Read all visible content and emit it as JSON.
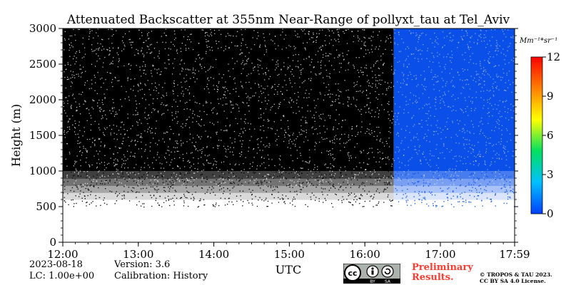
{
  "chart_data": {
    "type": "heatmap",
    "title": "Attenuated Backscatter at 355nm Near-Range of pollyxt_tau at Tel_Aviv",
    "xlabel": "UTC",
    "ylabel": "Height (m)",
    "x_ticks": [
      "12:00",
      "13:00",
      "14:00",
      "15:00",
      "16:00",
      "17:00",
      "17:59"
    ],
    "x_range": [
      "12:00",
      "17:59"
    ],
    "y_ticks": [
      0,
      500,
      1000,
      1500,
      2000,
      2500,
      3000
    ],
    "ylim": [
      0,
      3000
    ],
    "colorbar": {
      "unit": "Mm⁻¹*sr⁻¹",
      "ticks": [
        0,
        3,
        6,
        9,
        12
      ],
      "range": [
        0,
        12
      ],
      "colormap": [
        "#0040ff",
        "#00c0ff",
        "#00e060",
        "#ffff00",
        "#ff8000",
        "#ff0000"
      ]
    },
    "regions": [
      {
        "from": "12:00",
        "to": "16:23",
        "fill": "black with white noise speckle",
        "signal_top_m": 3000,
        "noise_below_m": 1000
      },
      {
        "from": "16:23",
        "to": "17:59",
        "fill": "blue (near 0)",
        "signal_top_m": 3000,
        "noise_below_m": 1000
      }
    ],
    "grid": false,
    "legend": "colorbar-right"
  },
  "info": {
    "date": "2023-08-18",
    "lc": "LC: 1.00e+00",
    "version": "Version: 3.6",
    "calibration": "Calibration: History",
    "preliminary_line1": "Preliminary",
    "preliminary_line2": "Results.",
    "copyright_line1": "© TROPOS & TAU 2023.",
    "copyright_line2": "CC BY SA 4.0 License.",
    "cc_badge_text": "cc",
    "cc_by": "BY",
    "cc_sa": "SA"
  },
  "colors": {
    "black_region": "#000000",
    "blue_region": "#0a50e8",
    "prelim_text": "#ff3b30"
  }
}
